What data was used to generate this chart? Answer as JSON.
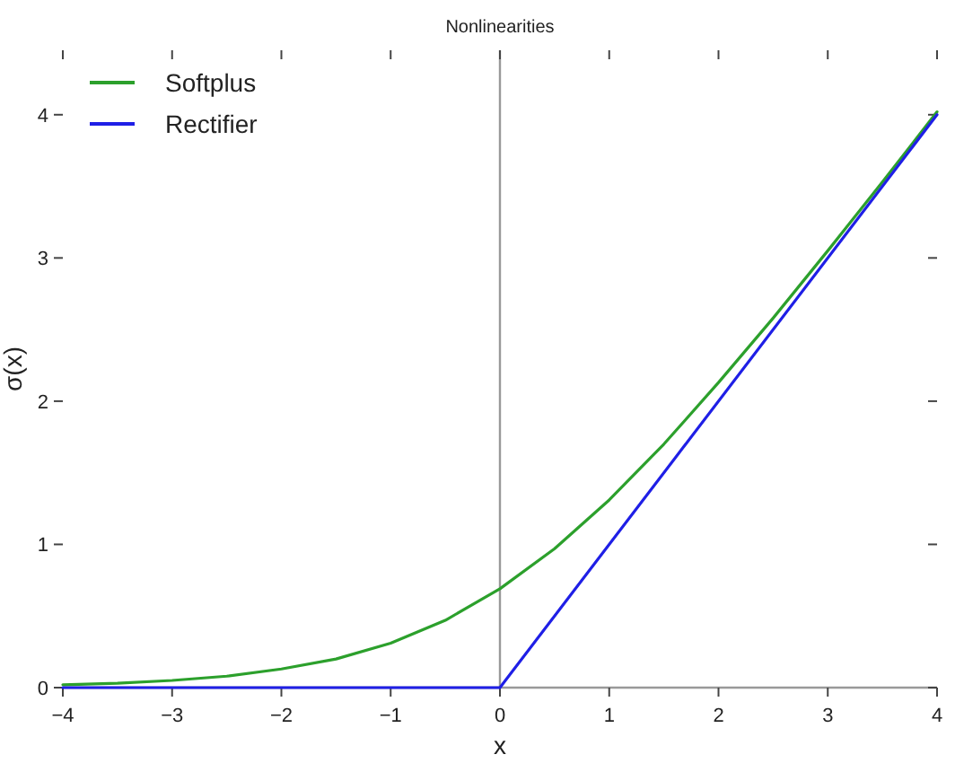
{
  "chart_data": {
    "type": "line",
    "title": "Nonlinearities",
    "xlabel": "x",
    "ylabel": "σ(x)",
    "xlim": [
      -4,
      4
    ],
    "ylim": [
      0,
      4.45
    ],
    "xticks": [
      -4,
      -3,
      -2,
      -1,
      0,
      1,
      2,
      3,
      4
    ],
    "yticks": [
      0,
      1,
      2,
      3,
      4
    ],
    "series": [
      {
        "name": "Softplus",
        "color": "#2ca02c",
        "x": [
          -4,
          -3.5,
          -3,
          -2.5,
          -2,
          -1.5,
          -1,
          -0.5,
          0,
          0.5,
          1,
          1.5,
          2,
          2.5,
          3,
          3.5,
          4
        ],
        "values": [
          0.02,
          0.03,
          0.05,
          0.08,
          0.13,
          0.2,
          0.31,
          0.47,
          0.69,
          0.97,
          1.31,
          1.7,
          2.13,
          2.58,
          3.05,
          3.53,
          4.02
        ]
      },
      {
        "name": "Rectifier",
        "color": "#1f1fe6",
        "x": [
          -4,
          0,
          4
        ],
        "values": [
          0,
          0,
          4
        ]
      }
    ],
    "ref_lines": [
      {
        "axis": "x",
        "value": 0,
        "color": "#999999"
      }
    ],
    "legend": "top left",
    "grid": false,
    "line_style": "solid",
    "marker": "none"
  }
}
